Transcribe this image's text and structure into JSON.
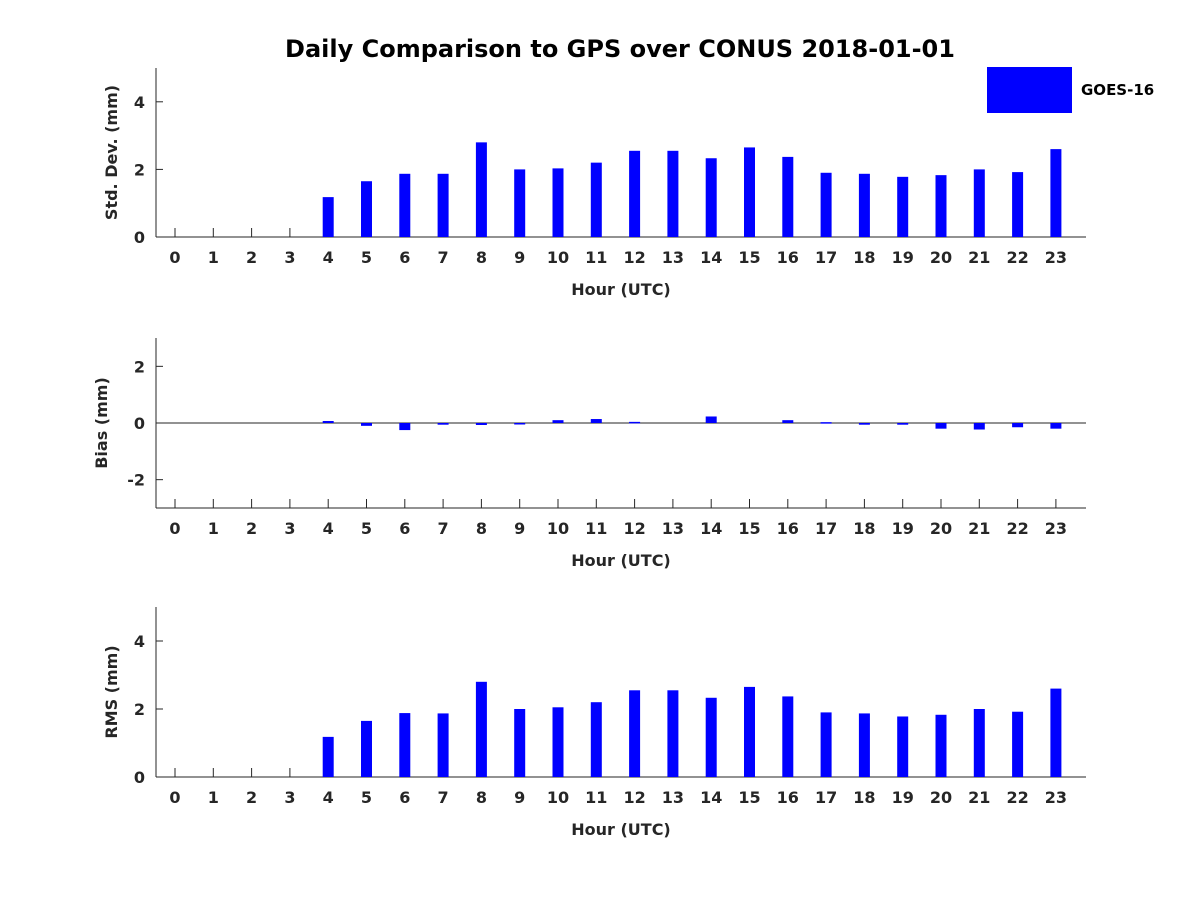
{
  "title": "Daily Comparison to GPS over CONUS 2018-01-01",
  "legend": {
    "label": "GOES-16",
    "color": "#0000ff",
    "placement": "top-right"
  },
  "chart_data": [
    {
      "type": "bar",
      "title": "Daily Comparison to GPS over CONUS 2018-01-01",
      "xlabel": "Hour (UTC)",
      "ylabel": "Std. Dev. (mm)",
      "categories": [
        "0",
        "1",
        "2",
        "3",
        "4",
        "5",
        "6",
        "7",
        "8",
        "9",
        "10",
        "11",
        "12",
        "13",
        "14",
        "15",
        "16",
        "17",
        "18",
        "19",
        "20",
        "21",
        "22",
        "23"
      ],
      "yticks": [
        0,
        2,
        4
      ],
      "ylim": [
        0,
        5
      ],
      "grid": false,
      "series": [
        {
          "name": "GOES-16",
          "color": "#0000ff",
          "values": [
            0,
            0,
            0,
            0,
            1.18,
            1.65,
            1.87,
            1.87,
            2.8,
            2.0,
            2.03,
            2.2,
            2.55,
            2.55,
            2.33,
            2.65,
            2.37,
            1.9,
            1.87,
            1.78,
            1.83,
            2.0,
            1.92,
            2.6
          ]
        }
      ]
    },
    {
      "type": "bar",
      "xlabel": "Hour (UTC)",
      "ylabel": "Bias (mm)",
      "categories": [
        "0",
        "1",
        "2",
        "3",
        "4",
        "5",
        "6",
        "7",
        "8",
        "9",
        "10",
        "11",
        "12",
        "13",
        "14",
        "15",
        "16",
        "17",
        "18",
        "19",
        "20",
        "21",
        "22",
        "23"
      ],
      "yticks": [
        -2,
        0,
        2
      ],
      "ylim": [
        -3,
        3
      ],
      "grid": false,
      "series": [
        {
          "name": "GOES-16",
          "color": "#0000ff",
          "values": [
            0,
            0,
            0,
            0,
            0.07,
            -0.1,
            -0.25,
            -0.06,
            -0.07,
            -0.02,
            0.1,
            0.14,
            0.04,
            0,
            0.23,
            0,
            0.1,
            0.03,
            -0.06,
            -0.06,
            -0.2,
            -0.23,
            -0.15,
            -0.2
          ]
        }
      ]
    },
    {
      "type": "bar",
      "xlabel": "Hour (UTC)",
      "ylabel": "RMS (mm)",
      "categories": [
        "0",
        "1",
        "2",
        "3",
        "4",
        "5",
        "6",
        "7",
        "8",
        "9",
        "10",
        "11",
        "12",
        "13",
        "14",
        "15",
        "16",
        "17",
        "18",
        "19",
        "20",
        "21",
        "22",
        "23"
      ],
      "yticks": [
        0,
        2,
        4
      ],
      "ylim": [
        0,
        5
      ],
      "grid": false,
      "series": [
        {
          "name": "GOES-16",
          "color": "#0000ff",
          "values": [
            0,
            0,
            0,
            0,
            1.18,
            1.65,
            1.88,
            1.87,
            2.8,
            2.0,
            2.05,
            2.2,
            2.55,
            2.55,
            2.33,
            2.65,
            2.37,
            1.9,
            1.87,
            1.78,
            1.83,
            2.0,
            1.92,
            2.6
          ]
        }
      ]
    }
  ]
}
